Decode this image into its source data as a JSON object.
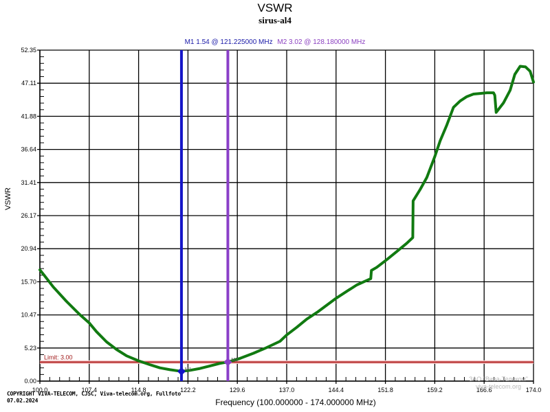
{
  "chart_data": {
    "type": "line",
    "title": "VSWR",
    "subtitle": "sirus-al4",
    "xlabel": "Frequency (100.000000 - 174.000000 MHz)",
    "ylabel": "VSWR",
    "xlim": [
      100.0,
      174.0
    ],
    "ylim": [
      0.0,
      52.35
    ],
    "grid": true,
    "x_ticks": [
      "100.0",
      "107.4",
      "114.8",
      "122.2",
      "129.6",
      "137.0",
      "144.4",
      "151.8",
      "159.2",
      "166.6",
      "174.0"
    ],
    "y_ticks": [
      "52.35",
      "47.11",
      "41.88",
      "36.64",
      "31.41",
      "26.17",
      "20.94",
      "15.70",
      "10.47",
      "5.23",
      "0.00"
    ],
    "series": [
      {
        "name": "VSWR",
        "color": "#117a11",
        "x": [
          100.0,
          100.6,
          102.0,
          104.0,
          106.0,
          107.4,
          108.5,
          110.0,
          111.5,
          113.0,
          114.8,
          116.5,
          118.0,
          119.5,
          121.225,
          122.5,
          124.0,
          125.5,
          127.0,
          128.18,
          130.0,
          132.0,
          134.0,
          136.0,
          137.0,
          138.5,
          140.0,
          141.6,
          143.0,
          144.4,
          146.0,
          147.5,
          149.6,
          149.7,
          150.5,
          152.0,
          153.5,
          155.0,
          155.9,
          155.95,
          157.0,
          158.0,
          159.2,
          160.0,
          161.0,
          162.0,
          163.0,
          164.0,
          165.0,
          166.0,
          167.0,
          168.0,
          168.2,
          168.4,
          169.5,
          170.5,
          171.2,
          172.0,
          172.8,
          173.5,
          174.0
        ],
        "values": [
          17.6,
          16.8,
          14.9,
          12.6,
          10.5,
          9.2,
          7.8,
          6.2,
          5.0,
          4.0,
          3.2,
          2.6,
          2.1,
          1.8,
          1.54,
          1.7,
          2.0,
          2.4,
          2.8,
          3.02,
          3.6,
          4.4,
          5.3,
          6.3,
          7.3,
          8.5,
          9.8,
          10.9,
          12.0,
          13.1,
          14.2,
          15.2,
          16.2,
          17.5,
          18.0,
          19.2,
          20.5,
          21.8,
          22.7,
          28.5,
          30.3,
          32.2,
          35.5,
          38.0,
          40.5,
          43.3,
          44.3,
          45.0,
          45.4,
          45.5,
          45.6,
          45.6,
          45.2,
          42.5,
          44.0,
          46.0,
          48.5,
          49.8,
          49.7,
          49.0,
          47.3
        ]
      }
    ],
    "limit": {
      "value": 3.0,
      "label": "Limit: 3.00",
      "color": "#b02020"
    },
    "markers": [
      {
        "name": "M1",
        "value": 1.54,
        "freq_mhz": 121.225,
        "color": "#1515c8"
      },
      {
        "name": "M2",
        "value": 3.02,
        "freq_mhz": 128.18,
        "color": "#8a3fc8"
      }
    ]
  },
  "header": {
    "title": "VSWR",
    "subtitle": "sirus-al4",
    "marker1_text": "M1  1.54 @ 121.225000 MHz",
    "marker2_text": "M2  3.02 @ 128.180000 MHz"
  },
  "axes": {
    "xlabel": "Frequency (100.000000 - 174.000000 MHz)",
    "ylabel": "VSWR",
    "limit_label": "Limit: 3.00",
    "marker1_tag": "M1",
    "marker2_tag": "M2"
  },
  "footer": {
    "copyright_line1": "COPYRIGHT VIVA-TELECOM, CJSC, Viva-telecom.org, Fullfoto",
    "copyright_line2": "07.02.2024",
    "watermark_line1": "ЗАО \"Вива-Телеком\"",
    "watermark_line2": "viva-telecom.org"
  }
}
